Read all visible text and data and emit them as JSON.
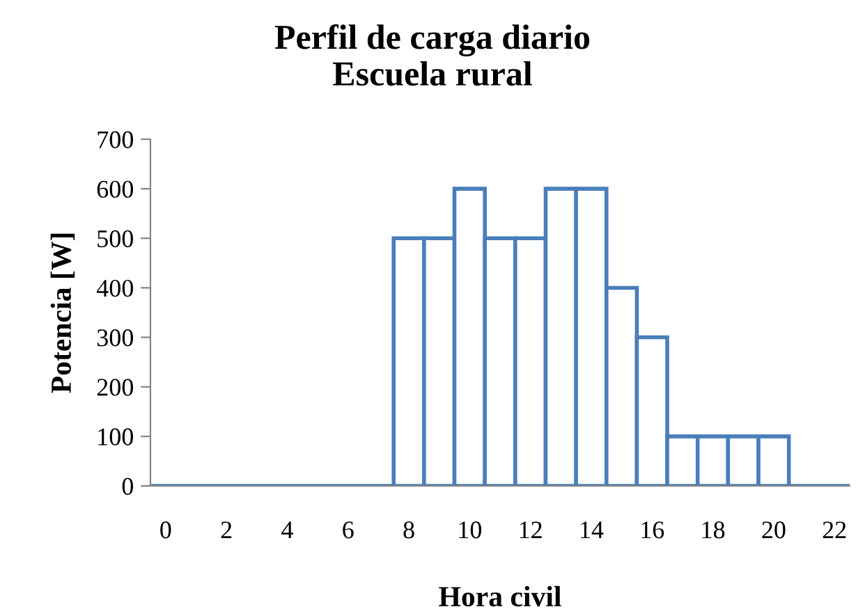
{
  "chart_data": {
    "type": "bar",
    "title": "Perfil de carga diario\nEscuela rural",
    "xlabel": "Hora civil",
    "ylabel": "Potencia [W]",
    "categories": [
      "0",
      null,
      "2",
      null,
      "4",
      null,
      "6",
      null,
      "8",
      null,
      "10",
      null,
      "12",
      null,
      "14",
      null,
      "16",
      null,
      "18",
      null,
      "20",
      null,
      "22"
    ],
    "values": [
      0,
      0,
      0,
      0,
      0,
      0,
      0,
      0,
      500,
      500,
      600,
      500,
      500,
      600,
      600,
      400,
      300,
      100,
      100,
      100,
      100,
      0,
      0
    ],
    "color": "#4a7ebb",
    "ylim": [
      0,
      700
    ],
    "yticks": [
      0,
      100,
      200,
      300,
      400,
      500,
      600,
      700
    ],
    "grid": false,
    "legend": false
  }
}
